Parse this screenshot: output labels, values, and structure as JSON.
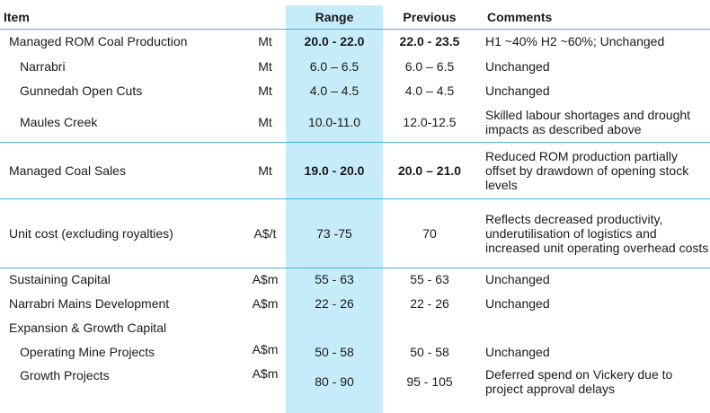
{
  "headers": {
    "item": "Item",
    "unit": "",
    "range": "Range",
    "previous": "Previous",
    "comments": "Comments"
  },
  "colors": {
    "range_band": "#c6ebf9",
    "rule": "#4ab0d6"
  },
  "rows": [
    {
      "item": "Managed ROM Coal Production",
      "unit": "Mt",
      "range": "20.0 - 22.0",
      "previous": "22.0 - 23.5",
      "comments": "H1 ~40% H2 ~60%; Unchanged"
    },
    {
      "item": "Narrabri",
      "unit": "Mt",
      "range": "6.0 – 6.5",
      "previous": "6.0 – 6.5",
      "comments": "Unchanged"
    },
    {
      "item": "Gunnedah Open Cuts",
      "unit": "Mt",
      "range": "4.0 – 4.5",
      "previous": "4.0 – 4.5",
      "comments": "Unchanged"
    },
    {
      "item": "Maules Creek",
      "unit": "Mt",
      "range": "10.0-11.0",
      "previous": "12.0-12.5",
      "comments": "Skilled labour shortages and drought impacts as described above"
    },
    {
      "item": "Managed Coal Sales",
      "unit": "Mt",
      "range": "19.0 - 20.0",
      "previous": "20.0 – 21.0",
      "comments": "Reduced ROM production partially offset by drawdown of opening stock levels"
    },
    {
      "item": "Unit cost (excluding royalties)",
      "unit": "A$/t",
      "range": "73 -75",
      "previous": "70",
      "comments": "Reflects decreased productivity, underutilisation of logistics and increased unit operating overhead costs"
    },
    {
      "item": "Sustaining Capital",
      "unit": "A$m",
      "range": "55 - 63",
      "previous": "55 - 63",
      "comments": "Unchanged"
    },
    {
      "item": "Narrabri Mains Development",
      "unit": "A$m",
      "range": "22 - 26",
      "previous": "22 - 26",
      "comments": "Unchanged"
    },
    {
      "item": "Expansion & Growth Capital",
      "unit": "",
      "range": "",
      "previous": "",
      "comments": ""
    },
    {
      "item": "Operating Mine Projects",
      "unit": "A$m",
      "range": "50 - 58",
      "previous": "50 - 58",
      "comments": "Unchanged"
    },
    {
      "item": "Growth Projects",
      "unit": "A$m",
      "range": "80 - 90",
      "previous": "95 - 105",
      "comments": "Deferred spend on Vickery due to project approval delays"
    }
  ]
}
